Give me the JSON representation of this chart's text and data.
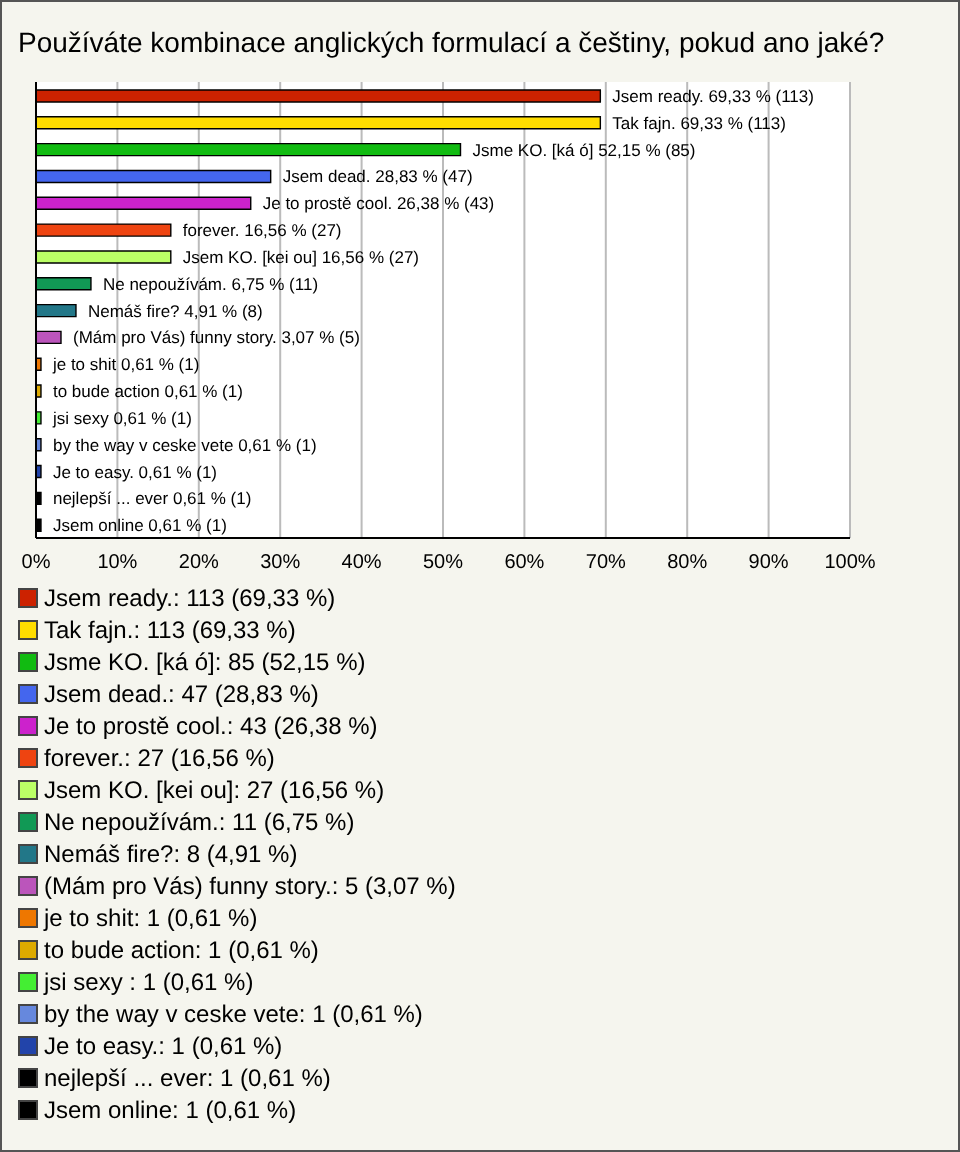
{
  "chart_data": {
    "type": "bar",
    "orientation": "horizontal",
    "title": "Používáte kombinace anglických formulací a češtiny, pokud ano jaké?",
    "categories": [
      null,
      null,
      null,
      null,
      null,
      null,
      null,
      null,
      null,
      null,
      null,
      null,
      null,
      null,
      null,
      null,
      null
    ],
    "values": [
      69.33,
      69.33,
      52.15,
      28.83,
      26.38,
      16.56,
      16.56,
      6.75,
      4.91,
      3.07,
      0.61,
      0.61,
      0.61,
      0.61,
      0.61,
      0.61,
      0.61
    ],
    "colors": [
      "#cc2200",
      "#ffdd00",
      "#11bb11",
      "#4466ee",
      "#cc22cc",
      "#ee4411",
      "#bbff66",
      "#119955",
      "#227788",
      "#bb55bb",
      "#ee7700",
      "#ddaa00",
      "#44ee33",
      "#6688dd",
      "#2244aa",
      "#000000",
      "#000000"
    ],
    "value_labels": [
      "Jsem ready. 69,33 % (113)",
      "Tak fajn. 69,33 % (113)",
      "Jsme KO. [ká ó] 52,15 % (85)",
      "Jsem dead. 28,83 % (47)",
      "Je to prostě cool. 26,38 % (43)",
      "forever. 16,56 % (27)",
      "Jsem KO. [kei ou] 16,56 % (27)",
      "Ne nepoužívám. 6,75 % (11)",
      "Nemáš fire? 4,91 % (8)",
      "(Mám pro Vás) funny story. 3,07 % (5)",
      "je to shit 0,61 % (1)",
      "to bude action 0,61 % (1)",
      "jsi sexy  0,61 % (1)",
      "by the way v ceske vete 0,61 % (1)",
      "Je to easy. 0,61 % (1)",
      "nejlepší ... ever 0,61 % (1)",
      "Jsem online 0,61 % (1)"
    ],
    "xlim": [
      0,
      100
    ],
    "xticks": [
      {
        "value": 0,
        "label": "0%"
      },
      {
        "value": 10,
        "label": "10%"
      },
      {
        "value": 20,
        "label": "20%"
      },
      {
        "value": 30,
        "label": "30%"
      },
      {
        "value": 40,
        "label": "40%"
      },
      {
        "value": 50,
        "label": "50%"
      },
      {
        "value": 60,
        "label": "60%"
      },
      {
        "value": 70,
        "label": "70%"
      },
      {
        "value": 80,
        "label": "80%"
      },
      {
        "value": 90,
        "label": "90%"
      },
      {
        "value": 100,
        "label": "100%"
      }
    ],
    "grid": "x",
    "tick_labels": "x",
    "annotations": [
      "Jsem ready.: 113 (69,33 %)",
      "Tak fajn.: 113 (69,33 %)",
      "Jsme KO. [ká ó]: 85 (52,15 %)",
      "Jsem dead.: 47 (28,83 %)",
      "Je to prostě cool.: 43 (26,38 %)",
      "forever.: 27 (16,56 %)",
      "Jsem KO. [kei ou]: 27 (16,56 %)",
      "Ne nepoužívám.: 11 (6,75 %)",
      "Nemáš fire?: 8 (4,91 %)",
      "(Mám pro Vás) funny story.: 5 (3,07 %)",
      "je to shit: 1 (0,61 %)",
      "to bude action: 1 (0,61 %)",
      "jsi sexy : 1 (0,61 %)",
      "by the way v ceske vete: 1 (0,61 %)",
      "Je to easy.: 1 (0,61 %)",
      "nejlepší ... ever: 1 (0,61 %)",
      "Jsem online: 1 (0,61 %)"
    ]
  }
}
